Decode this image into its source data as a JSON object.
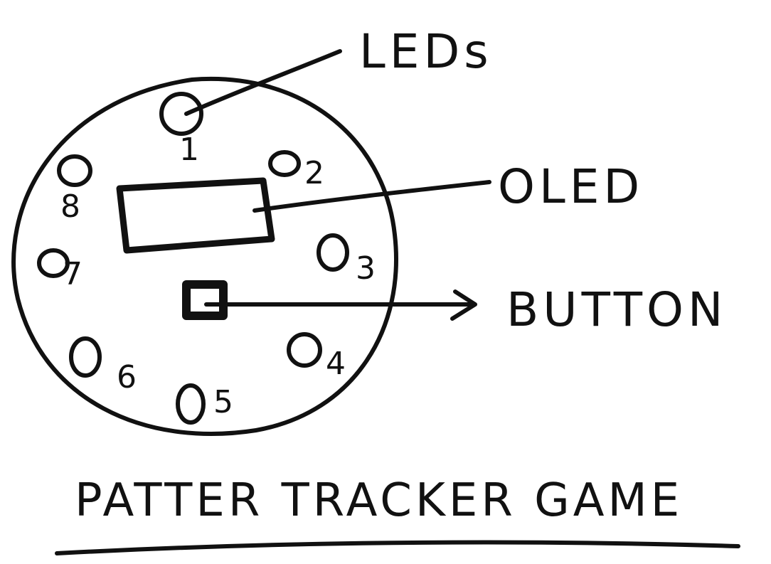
{
  "labels": {
    "leds": "LEDs",
    "oled": "OLED",
    "button": "BUTTON"
  },
  "led_numbers": [
    "1",
    "2",
    "3",
    "4",
    "5",
    "6",
    "7",
    "8"
  ],
  "title": "PATTER TRACKER GAME",
  "colors": {
    "ink": "#111111",
    "paper": "#ffffff"
  }
}
